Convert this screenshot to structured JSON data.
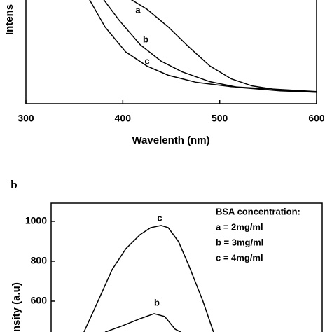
{
  "chart_data": [
    {
      "type": "line",
      "xlabel": "Wavelenth (nm)",
      "ylabel": "Intens",
      "xlim": [
        300,
        600
      ],
      "xticks": [
        300,
        400,
        500,
        600
      ],
      "ylim": [
        0,
        1
      ],
      "annotations": [
        "a",
        "b",
        "c"
      ],
      "series": [
        {
          "name": "a",
          "color": "#000000",
          "x": [
            407,
            425,
            447,
            468,
            490,
            512,
            533.5,
            562.4,
            600
          ],
          "values": [
            1.0,
            0.899,
            0.73,
            0.541,
            0.358,
            0.236,
            0.169,
            0.128,
            0.108
          ]
        },
        {
          "name": "b",
          "color": "#000000",
          "x": [
            379.5,
            396,
            418,
            439.5,
            461,
            490,
            519,
            562.4,
            600
          ],
          "values": [
            1.0,
            0.797,
            0.561,
            0.405,
            0.304,
            0.209,
            0.155,
            0.122,
            0.108
          ]
        },
        {
          "name": "c",
          "color": "#000000",
          "x": [
            365,
            381.7,
            403,
            425,
            447,
            475.7,
            512,
            562.4,
            600
          ],
          "values": [
            1.0,
            0.73,
            0.493,
            0.358,
            0.27,
            0.203,
            0.162,
            0.135,
            0.115
          ]
        }
      ]
    },
    {
      "type": "line",
      "panel_label": "b",
      "ylabel": "nsity (a.u)",
      "xlim": [
        0,
        1
      ],
      "ylim": [
        400,
        1091
      ],
      "yticks": [
        600,
        800,
        1000
      ],
      "legend_title": "BSA concentration:",
      "legend_items": [
        "a = 2mg/ml",
        "b = 3mg/ml",
        "c = 4mg/ml"
      ],
      "annotations": [
        "c",
        "b"
      ],
      "series": [
        {
          "name": "c",
          "color": "#000000",
          "x": [
            0.121,
            0.173,
            0.225,
            0.276,
            0.328,
            0.367,
            0.406,
            0.432,
            0.47,
            0.509,
            0.56,
            0.599
          ],
          "values": [
            445,
            600,
            758,
            863,
            933,
            968,
            979,
            968,
            898,
            775,
            600,
            445
          ]
        },
        {
          "name": "b",
          "color": "#000000",
          "x": [
            0.199,
            0.264,
            0.328,
            0.38,
            0.419,
            0.457,
            0.478
          ],
          "values": [
            445,
            477,
            512,
            537,
            523,
            460,
            445
          ]
        }
      ]
    }
  ]
}
